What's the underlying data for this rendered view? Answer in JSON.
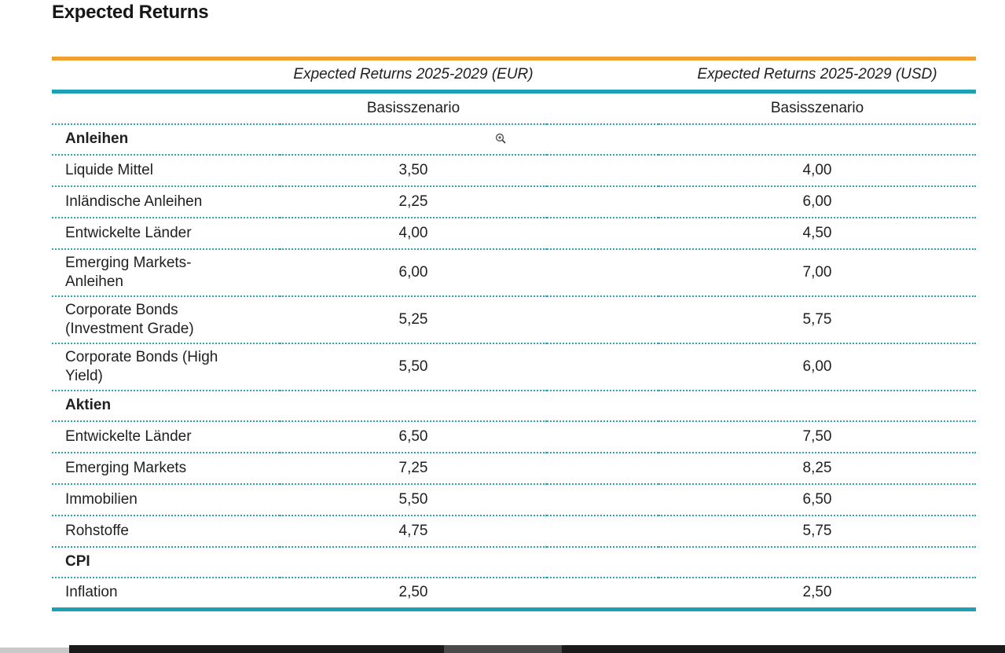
{
  "page_title": "Expected Returns",
  "table": {
    "col_headers": [
      "Expected Returns 2025-2029 (EUR)",
      "Expected Returns 2025-2029 (USD)"
    ],
    "sub_headers": [
      "Basisszenario",
      "Basisszenario"
    ],
    "rows": [
      {
        "type": "section",
        "label": "Anleihen"
      },
      {
        "type": "data",
        "label": "Liquide Mittel",
        "eur": "3,50",
        "usd": "4,00"
      },
      {
        "type": "data",
        "label": "Inländische Anleihen",
        "eur": "2,25",
        "usd": "6,00"
      },
      {
        "type": "data",
        "label": "Entwickelte Länder",
        "eur": "4,00",
        "usd": "4,50"
      },
      {
        "type": "data",
        "label": "Emerging Markets-\nAnleihen",
        "eur": "6,00",
        "usd": "7,00"
      },
      {
        "type": "data",
        "label": "Corporate Bonds\n(Investment Grade)",
        "eur": "5,25",
        "usd": "5,75"
      },
      {
        "type": "data",
        "label": "Corporate Bonds (High\nYield)",
        "eur": "5,50",
        "usd": "6,00"
      },
      {
        "type": "section",
        "label": "Aktien"
      },
      {
        "type": "data",
        "label": "Entwickelte Länder",
        "eur": "6,50",
        "usd": "7,50"
      },
      {
        "type": "data",
        "label": "Emerging Markets",
        "eur": "7,25",
        "usd": "8,25"
      },
      {
        "type": "data",
        "label": "Immobilien",
        "eur": "5,50",
        "usd": "6,50"
      },
      {
        "type": "data",
        "label": "Rohstoffe",
        "eur": "4,75",
        "usd": "5,75"
      },
      {
        "type": "section",
        "label": "CPI"
      },
      {
        "type": "data",
        "label": "Inflation",
        "eur": "2,50",
        "usd": "2,50"
      }
    ]
  },
  "cursor": {
    "icon": "zoom-in-cursor"
  },
  "colors": {
    "accent-orange": "#EFA02F",
    "accent-teal": "#1BA0B4",
    "rule-teal": "#2EA3B8",
    "text-main": "#1F1F1F",
    "bar-dark": "#1A1A1A",
    "bar-mid": "#4A4A4A",
    "bar-left-gray": "#C9C9C9"
  }
}
